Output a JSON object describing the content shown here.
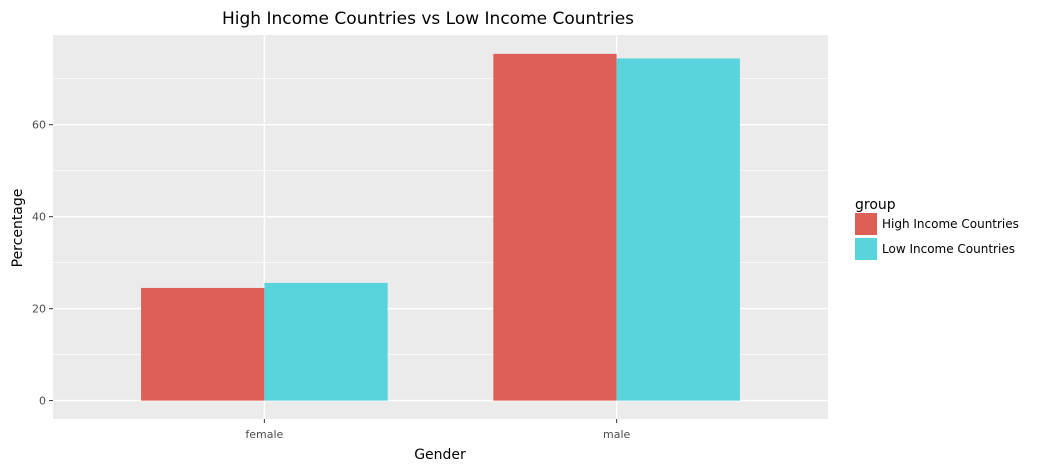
{
  "chart_data": {
    "type": "bar",
    "title": "High Income Countries vs Low Income Countries",
    "xlabel": "Gender",
    "ylabel": "Percentage",
    "categories": [
      "female",
      "male"
    ],
    "series": [
      {
        "name": "High Income Countries",
        "color": "#dd5f57",
        "values": [
          24.5,
          75.4
        ]
      },
      {
        "name": "Low Income Countries",
        "color": "#5ad4dc",
        "values": [
          25.6,
          74.4
        ]
      }
    ],
    "yticks": [
      0,
      20,
      40,
      60
    ],
    "ytick_labels": [
      "0",
      "20",
      "40",
      "60"
    ],
    "ylim": [
      -4,
      79.5
    ],
    "legend": {
      "title": "group",
      "position": "right"
    },
    "grid": true,
    "panel_background": "#ebebeb",
    "grid_color": "#ffffff"
  }
}
